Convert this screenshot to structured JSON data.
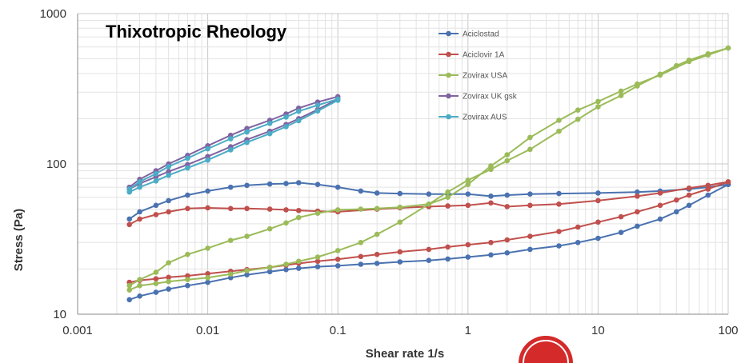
{
  "chart_data": {
    "type": "line",
    "title": "Thixotropic Rheology",
    "xlabel": "Shear rate 1/s",
    "ylabel": "Stress (Pa)",
    "x_scale": "log",
    "y_scale": "log",
    "xlim": [
      0.001,
      100
    ],
    "ylim": [
      10,
      1000
    ],
    "x_ticks": [
      "0.001",
      "0.01",
      "0.1",
      "1",
      "10",
      "100"
    ],
    "y_ticks": [
      "10",
      "100",
      "1000"
    ],
    "grid": true,
    "legend_position": "top-right",
    "series": [
      {
        "name": "Aciclostad",
        "color": "#4a72b0",
        "up": {
          "x": [
            0.0025,
            0.003,
            0.004,
            0.005,
            0.007,
            0.01,
            0.015,
            0.02,
            0.03,
            0.04,
            0.05,
            0.07,
            0.1,
            0.15,
            0.2,
            0.3,
            0.5,
            0.7,
            1,
            1.5,
            2,
            3,
            5,
            7,
            10,
            15,
            20,
            30,
            40,
            50,
            70,
            100
          ],
          "y": [
            12.5,
            13.2,
            14,
            14.7,
            15.5,
            16.3,
            17.5,
            18.3,
            19.2,
            19.8,
            20.2,
            20.7,
            21,
            21.5,
            21.8,
            22.3,
            22.8,
            23.3,
            24,
            24.8,
            25.6,
            27,
            28.5,
            30,
            32,
            35,
            38.5,
            43,
            48,
            53,
            62,
            73
          ]
        },
        "down": {
          "x": [
            100,
            70,
            50,
            30,
            20,
            10,
            5,
            3,
            2,
            1.5,
            1,
            0.7,
            0.5,
            0.3,
            0.2,
            0.15,
            0.1,
            0.07,
            0.05,
            0.04,
            0.03,
            0.02,
            0.015,
            0.01,
            0.007,
            0.005,
            0.004,
            0.003,
            0.0025
          ],
          "y": [
            73,
            70,
            68,
            66,
            65,
            64,
            63.5,
            63,
            62,
            61,
            63,
            63,
            63,
            63.5,
            64,
            66,
            70,
            73,
            75,
            74,
            73.5,
            72,
            70,
            66,
            62,
            57,
            53,
            48,
            43
          ]
        }
      },
      {
        "name": "Aciclovir 1A",
        "color": "#c0504d",
        "up": {
          "x": [
            0.0025,
            0.003,
            0.004,
            0.005,
            0.007,
            0.01,
            0.015,
            0.02,
            0.03,
            0.04,
            0.05,
            0.07,
            0.1,
            0.15,
            0.2,
            0.3,
            0.5,
            0.7,
            1,
            1.5,
            2,
            3,
            5,
            7,
            10,
            15,
            20,
            30,
            40,
            50,
            70,
            100
          ],
          "y": [
            16.3,
            16.8,
            17.2,
            17.6,
            18,
            18.6,
            19.3,
            19.8,
            20.5,
            21.2,
            21.8,
            22.5,
            23.2,
            24.2,
            25,
            26,
            27,
            28,
            29,
            30,
            31.2,
            33,
            35.5,
            38,
            41,
            44.5,
            48,
            53,
            57.5,
            62,
            68,
            76
          ]
        },
        "down": {
          "x": [
            100,
            70,
            50,
            30,
            20,
            10,
            5,
            3,
            2,
            1.5,
            1,
            0.7,
            0.5,
            0.3,
            0.2,
            0.1,
            0.07,
            0.05,
            0.04,
            0.03,
            0.02,
            0.015,
            0.01,
            0.007,
            0.005,
            0.004,
            0.003,
            0.0025
          ],
          "y": [
            76,
            72,
            69,
            64,
            61,
            57,
            54,
            53,
            52,
            55,
            53,
            52.5,
            52,
            51,
            50,
            48,
            48.5,
            49,
            49.5,
            50,
            50.5,
            50.5,
            51,
            50.5,
            48,
            46,
            43,
            39.5
          ]
        }
      },
      {
        "name": "Zovirax USA",
        "color": "#9bbb59",
        "up": {
          "x": [
            0.0025,
            0.003,
            0.004,
            0.005,
            0.007,
            0.01,
            0.015,
            0.02,
            0.03,
            0.04,
            0.05,
            0.07,
            0.1,
            0.15,
            0.2,
            0.3,
            0.5,
            0.7,
            1,
            1.5,
            2,
            3,
            5,
            7,
            10,
            15,
            20,
            30,
            40,
            50,
            70,
            100
          ],
          "y": [
            14.5,
            15.5,
            16,
            16.5,
            17,
            17.5,
            18.5,
            19.5,
            20.5,
            21.5,
            22.5,
            24,
            26.5,
            30,
            34,
            41,
            54,
            65,
            78,
            92,
            105,
            125,
            165,
            198,
            240,
            285,
            330,
            395,
            450,
            490,
            540,
            590
          ]
        },
        "down": {
          "x": [
            100,
            70,
            50,
            30,
            20,
            15,
            10,
            7,
            5,
            3,
            2,
            1.5,
            1,
            0.7,
            0.5,
            0.3,
            0.2,
            0.15,
            0.1,
            0.07,
            0.05,
            0.04,
            0.03,
            0.02,
            0.015,
            0.01,
            0.007,
            0.005,
            0.004,
            0.003,
            0.0025
          ],
          "y": [
            590,
            530,
            480,
            390,
            340,
            305,
            260,
            228,
            195,
            150,
            115,
            97,
            73,
            60,
            54,
            51.5,
            50.5,
            50,
            49.5,
            47,
            44,
            40.5,
            37,
            33,
            31,
            27.5,
            25,
            22,
            19,
            17,
            15.5
          ]
        }
      },
      {
        "name": "Zovirax UK gsk",
        "color": "#8064a2",
        "up": {
          "x": [
            0.0025,
            0.003,
            0.004,
            0.005,
            0.007,
            0.01,
            0.015,
            0.02,
            0.03,
            0.04,
            0.05,
            0.07,
            0.1
          ],
          "y": [
            68,
            74,
            82,
            89,
            99,
            112,
            130,
            145,
            165,
            183,
            200,
            230,
            270
          ]
        },
        "down": {
          "x": [
            0.1,
            0.07,
            0.05,
            0.04,
            0.03,
            0.02,
            0.015,
            0.01,
            0.007,
            0.005,
            0.004,
            0.003,
            0.0025
          ],
          "y": [
            280,
            258,
            235,
            215,
            195,
            172,
            155,
            132,
            114,
            100,
            90,
            79,
            70
          ]
        }
      },
      {
        "name": "Zovirax AUS",
        "color": "#4bacc6",
        "up": {
          "x": [
            0.0025,
            0.003,
            0.004,
            0.005,
            0.007,
            0.01,
            0.015,
            0.02,
            0.03,
            0.04,
            0.05,
            0.07,
            0.1
          ],
          "y": [
            65,
            70,
            77,
            84,
            94,
            106,
            124,
            139,
            159,
            177,
            194,
            225,
            265
          ]
        },
        "down": {
          "x": [
            0.1,
            0.07,
            0.05,
            0.04,
            0.03,
            0.02,
            0.015,
            0.01,
            0.007,
            0.005,
            0.004,
            0.003,
            0.0025
          ],
          "y": [
            270,
            246,
            224,
            205,
            186,
            163,
            147,
            126,
            109,
            96,
            86,
            76,
            68
          ]
        }
      }
    ]
  }
}
